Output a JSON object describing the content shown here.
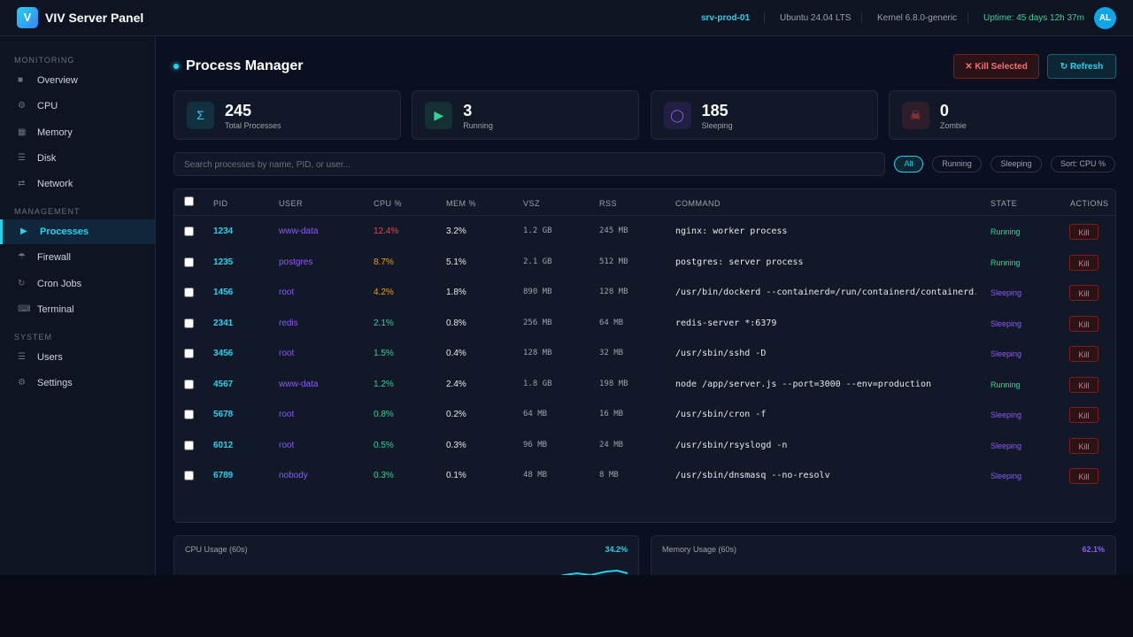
{
  "header": {
    "logo": "V",
    "title": "VIV Server Panel",
    "host": "srv-prod-01",
    "os": "Ubuntu 24.04 LTS",
    "kernel": "Kernel 6.8.0-generic",
    "uptime": "Uptime: 45 days 12h 37m",
    "avatar": "AL"
  },
  "sidebar": [
    {
      "title": "MONITORING",
      "items": [
        {
          "icon": "■",
          "label": "Overview"
        },
        {
          "icon": "⚙",
          "label": "CPU"
        },
        {
          "icon": "▦",
          "label": "Memory"
        },
        {
          "icon": "☰",
          "label": "Disk"
        },
        {
          "icon": "⇄",
          "label": "Network"
        }
      ]
    },
    {
      "title": "MANAGEMENT",
      "items": [
        {
          "icon": "▶",
          "label": "Processes",
          "active": true
        },
        {
          "icon": "☂",
          "label": "Firewall"
        },
        {
          "icon": "↻",
          "label": "Cron Jobs"
        },
        {
          "icon": "⌨",
          "label": "Terminal"
        }
      ]
    },
    {
      "title": "SYSTEM",
      "items": [
        {
          "icon": "☰",
          "label": "Users"
        },
        {
          "icon": "⚙",
          "label": "Settings"
        }
      ]
    }
  ],
  "page": {
    "title": "Process Manager",
    "kill_selected": "✕ Kill Selected",
    "refresh": "↻ Refresh"
  },
  "stats": [
    {
      "icon": "Σ",
      "value": 245,
      "label": "Total Processes",
      "color": "#22d3ee"
    },
    {
      "icon": "▶",
      "value": 3,
      "label": "Running",
      "color": "#34d399"
    },
    {
      "icon": "◯",
      "value": 185,
      "label": "Sleeping",
      "color": "#8b5cf6"
    },
    {
      "icon": "☠",
      "value": 0,
      "label": "Zombie",
      "color": "#ef4444"
    }
  ],
  "search": {
    "placeholder": "Search processes by name, PID, or user..."
  },
  "filters": [
    "All",
    "Running",
    "Sleeping",
    "Sort: CPU %"
  ],
  "table": {
    "columns": [
      "PID",
      "USER",
      "CPU %",
      "MEM %",
      "VSZ",
      "RSS",
      "COMMAND",
      "STATE",
      "ACTIONS"
    ],
    "rows": [
      [
        "1234",
        "www-data",
        "12.4%",
        "3.2%",
        "1.2 GB",
        "245 MB",
        "nginx: worker process",
        "Running",
        "Kill"
      ],
      [
        "1235",
        "postgres",
        "8.7%",
        "5.1%",
        "2.1 GB",
        "512 MB",
        "postgres: server process",
        "Running",
        "Kill"
      ],
      [
        "1456",
        "root",
        "4.2%",
        "1.8%",
        "890 MB",
        "128 MB",
        "/usr/bin/dockerd --containerd=/run/containerd/containerd.so…",
        "Sleeping",
        "Kill"
      ],
      [
        "2341",
        "redis",
        "2.1%",
        "0.8%",
        "256 MB",
        "64 MB",
        "redis-server *:6379",
        "Sleeping",
        "Kill"
      ],
      [
        "3456",
        "root",
        "1.5%",
        "0.4%",
        "128 MB",
        "32 MB",
        "/usr/sbin/sshd -D",
        "Sleeping",
        "Kill"
      ],
      [
        "4567",
        "www-data",
        "1.2%",
        "2.4%",
        "1.8 GB",
        "198 MB",
        "node /app/server.js --port=3000 --env=production",
        "Running",
        "Kill"
      ],
      [
        "5678",
        "root",
        "0.8%",
        "0.2%",
        "64 MB",
        "16 MB",
        "/usr/sbin/cron -f",
        "Sleeping",
        "Kill"
      ],
      [
        "6012",
        "root",
        "0.5%",
        "0.3%",
        "96 MB",
        "24 MB",
        "/usr/sbin/rsyslogd -n",
        "Sleeping",
        "Kill"
      ],
      [
        "6789",
        "nobody",
        "0.3%",
        "0.1%",
        "48 MB",
        "8 MB",
        "/usr/sbin/dnsmasq --no-resolv",
        "Sleeping",
        "Kill"
      ]
    ]
  },
  "charts": [
    {
      "title": "CPU Usage (60s)",
      "value": "34.2%",
      "color": "#22d3ee"
    },
    {
      "title": "Memory Usage (60s)",
      "value": "62.1%",
      "color": "#8b5cf6"
    }
  ]
}
